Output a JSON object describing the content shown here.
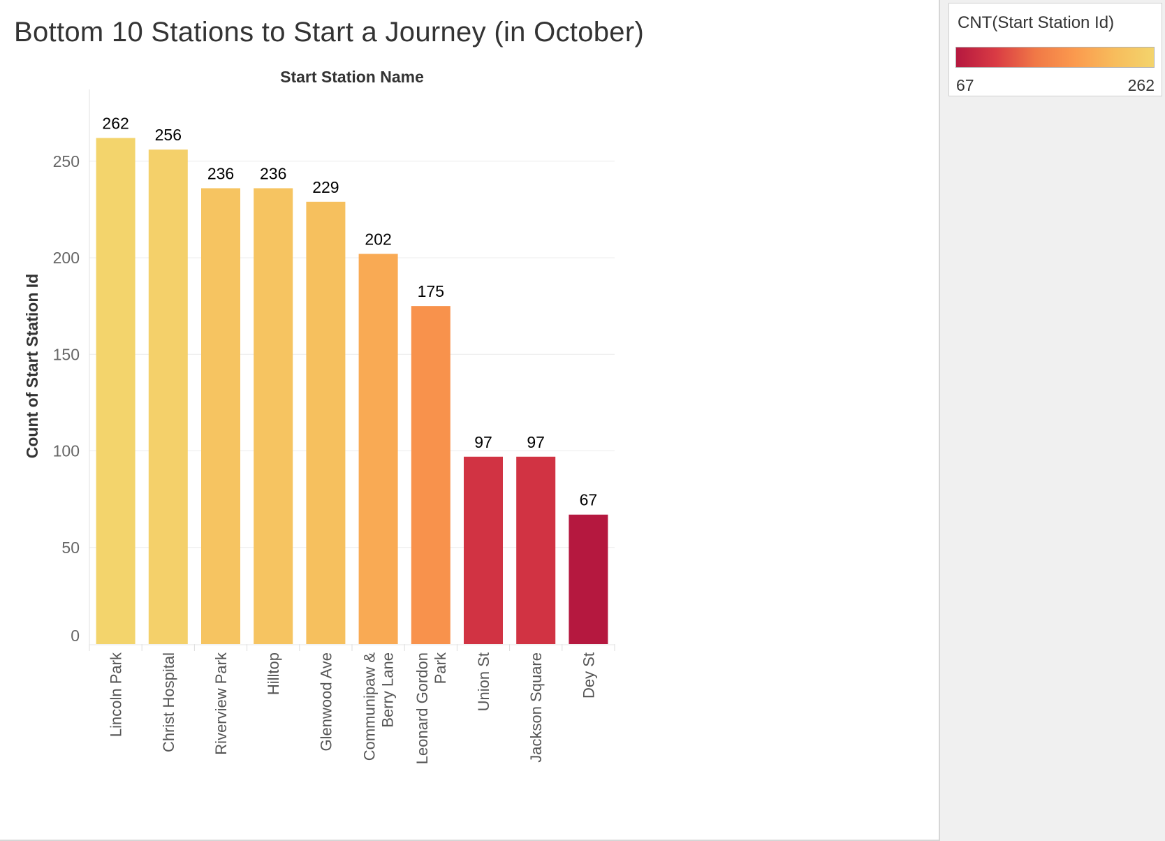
{
  "chart_data": {
    "type": "bar",
    "title": "Bottom 10 Stations to Start a Journey (in October)",
    "header_label": "Start Station Name",
    "ylabel": "Count of Start Station Id",
    "categories": [
      "Lincoln Park",
      "Christ Hospital",
      "Riverview Park",
      "Hilltop",
      "Glenwood Ave",
      "Communipaw & Berry Lane",
      "Leonard Gordon Park",
      "Union St",
      "Jackson Square",
      "Dey St"
    ],
    "category_lines": [
      [
        "Lincoln Park"
      ],
      [
        "Christ Hospital"
      ],
      [
        "Riverview Park"
      ],
      [
        "Hilltop"
      ],
      [
        "Glenwood Ave"
      ],
      [
        "Communipaw &",
        "Berry Lane"
      ],
      [
        "Leonard Gordon",
        "Park"
      ],
      [
        "Union St"
      ],
      [
        "Jackson Square"
      ],
      [
        "Dey St"
      ]
    ],
    "values": [
      262,
      256,
      236,
      236,
      229,
      202,
      175,
      97,
      97,
      67
    ],
    "ylim": [
      0,
      285
    ],
    "yticks": [
      0,
      50,
      100,
      150,
      200,
      250
    ],
    "grid": true,
    "data_labels": true,
    "color_scale": {
      "title": "CNT(Start Station Id)",
      "min": 67,
      "max": 262,
      "min_label": "67",
      "max_label": "262",
      "stops": [
        "#b5183f",
        "#d93b44",
        "#f07846",
        "#fb9a4e",
        "#f7bc5c",
        "#f3d46c"
      ]
    },
    "legend_position": "top-right"
  }
}
